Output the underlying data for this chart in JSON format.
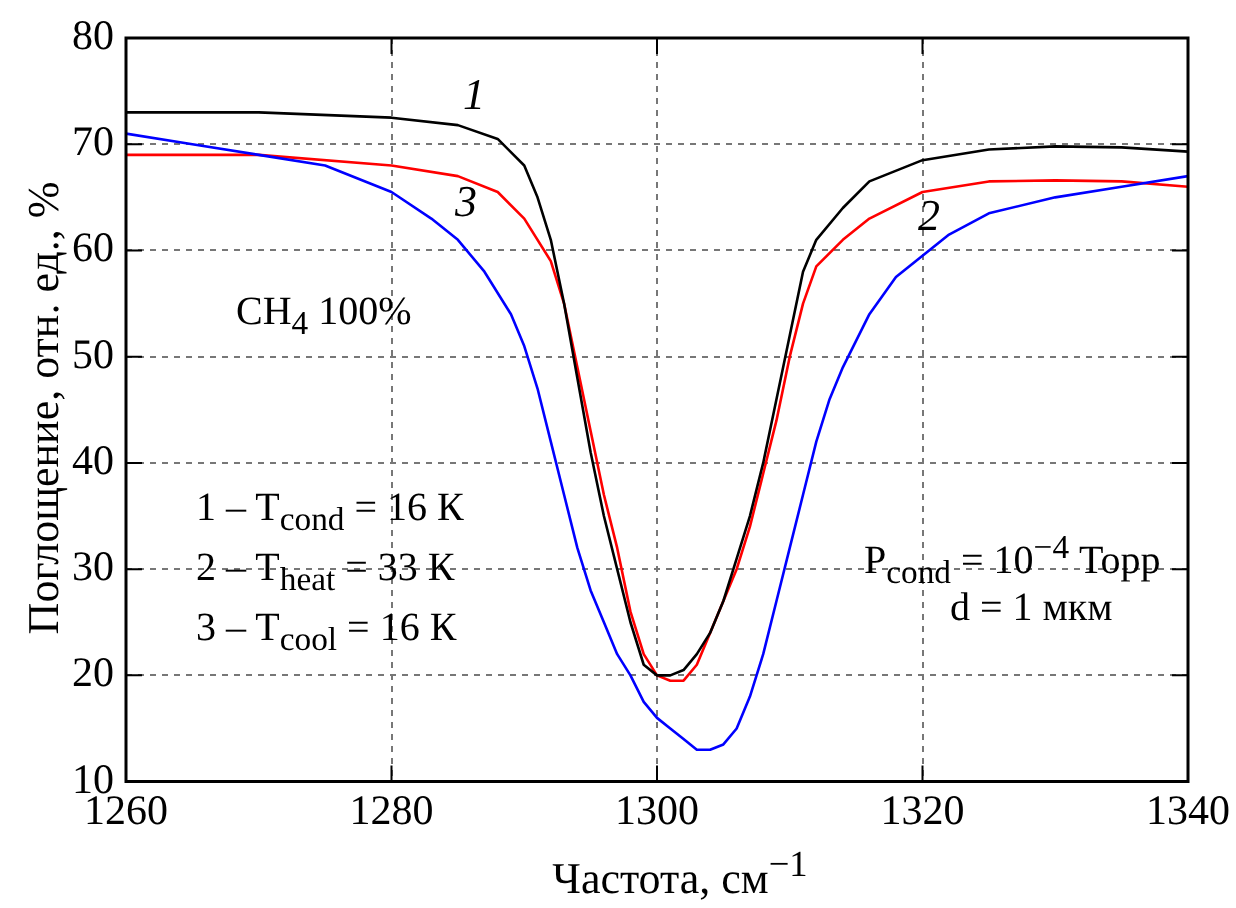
{
  "chart_data": {
    "type": "line",
    "xlabel": "Частота, см$^{−1}$",
    "ylabel": "Поглощение, отн. ед., %",
    "xlim": [
      1260,
      1340
    ],
    "xticks": [
      1260,
      1280,
      1300,
      1320,
      1340
    ],
    "ylim": [
      10,
      80
    ],
    "yticks": [
      10,
      20,
      30,
      40,
      50,
      60,
      70,
      80
    ],
    "grid": true,
    "legend": false,
    "marker": "none",
    "line_style": "solid",
    "annotations": [
      "CH$_{4}$ 100%",
      "1 – T$_{cond}$ = 16 К",
      "2 – T$_{heat}$ = 33 К",
      "3 – T$_{cool}$ = 16 К",
      "P$_{cond}$ = 10$^{−4}$ Торр",
      "d = 1 мкм"
    ],
    "series": [
      {
        "name": "1",
        "color": "#000000",
        "x": [
          1260,
          1270,
          1280,
          1285,
          1288,
          1290,
          1291,
          1292,
          1293,
          1294,
          1295,
          1296,
          1297,
          1298,
          1299,
          1300,
          1301,
          1302,
          1303,
          1304,
          1305,
          1306,
          1307,
          1308,
          1309,
          1310,
          1311,
          1312,
          1314,
          1316,
          1320,
          1325,
          1330,
          1335,
          1340
        ],
        "values": [
          73,
          73,
          72.5,
          71.8,
          70.5,
          68,
          65,
          61,
          55,
          48,
          41,
          35,
          30,
          25,
          21,
          20,
          20,
          20.5,
          22,
          24,
          27,
          31,
          35,
          40,
          46,
          52,
          58,
          61,
          64,
          66.5,
          68.5,
          69.5,
          69.8,
          69.7,
          69.3
        ]
      },
      {
        "name": "2",
        "color": "#0000ff",
        "x": [
          1260,
          1265,
          1270,
          1275,
          1280,
          1283,
          1285,
          1287,
          1289,
          1290,
          1291,
          1292,
          1293,
          1294,
          1295,
          1296,
          1297,
          1298,
          1299,
          1300,
          1301,
          1302,
          1303,
          1304,
          1305,
          1306,
          1307,
          1308,
          1309,
          1310,
          1311,
          1312,
          1313,
          1314,
          1316,
          1318,
          1320,
          1322,
          1325,
          1330,
          1335,
          1340
        ],
        "values": [
          71,
          70,
          69,
          68,
          65.5,
          63,
          61,
          58,
          54,
          51,
          47,
          42,
          37,
          32,
          28,
          25,
          22,
          20,
          17.5,
          16,
          15,
          14,
          13,
          13,
          13.5,
          15,
          18,
          22,
          27,
          32,
          37,
          42,
          46,
          49,
          54,
          57.5,
          59.5,
          61.5,
          63.5,
          65,
          66,
          67
        ]
      },
      {
        "name": "3",
        "color": "#ff0000",
        "x": [
          1260,
          1270,
          1280,
          1285,
          1288,
          1290,
          1292,
          1293,
          1294,
          1295,
          1296,
          1297,
          1298,
          1299,
          1300,
          1301,
          1302,
          1303,
          1304,
          1305,
          1306,
          1307,
          1308,
          1309,
          1310,
          1311,
          1312,
          1314,
          1316,
          1320,
          1325,
          1330,
          1335,
          1340
        ],
        "values": [
          69,
          69,
          68,
          67,
          65.5,
          63,
          59,
          55,
          49,
          43,
          37,
          32,
          26,
          22,
          20,
          19.5,
          19.5,
          21,
          24,
          27,
          30,
          34,
          39,
          44,
          50,
          55,
          58.5,
          61,
          63,
          65.5,
          66.5,
          66.6,
          66.5,
          66
        ]
      }
    ]
  }
}
